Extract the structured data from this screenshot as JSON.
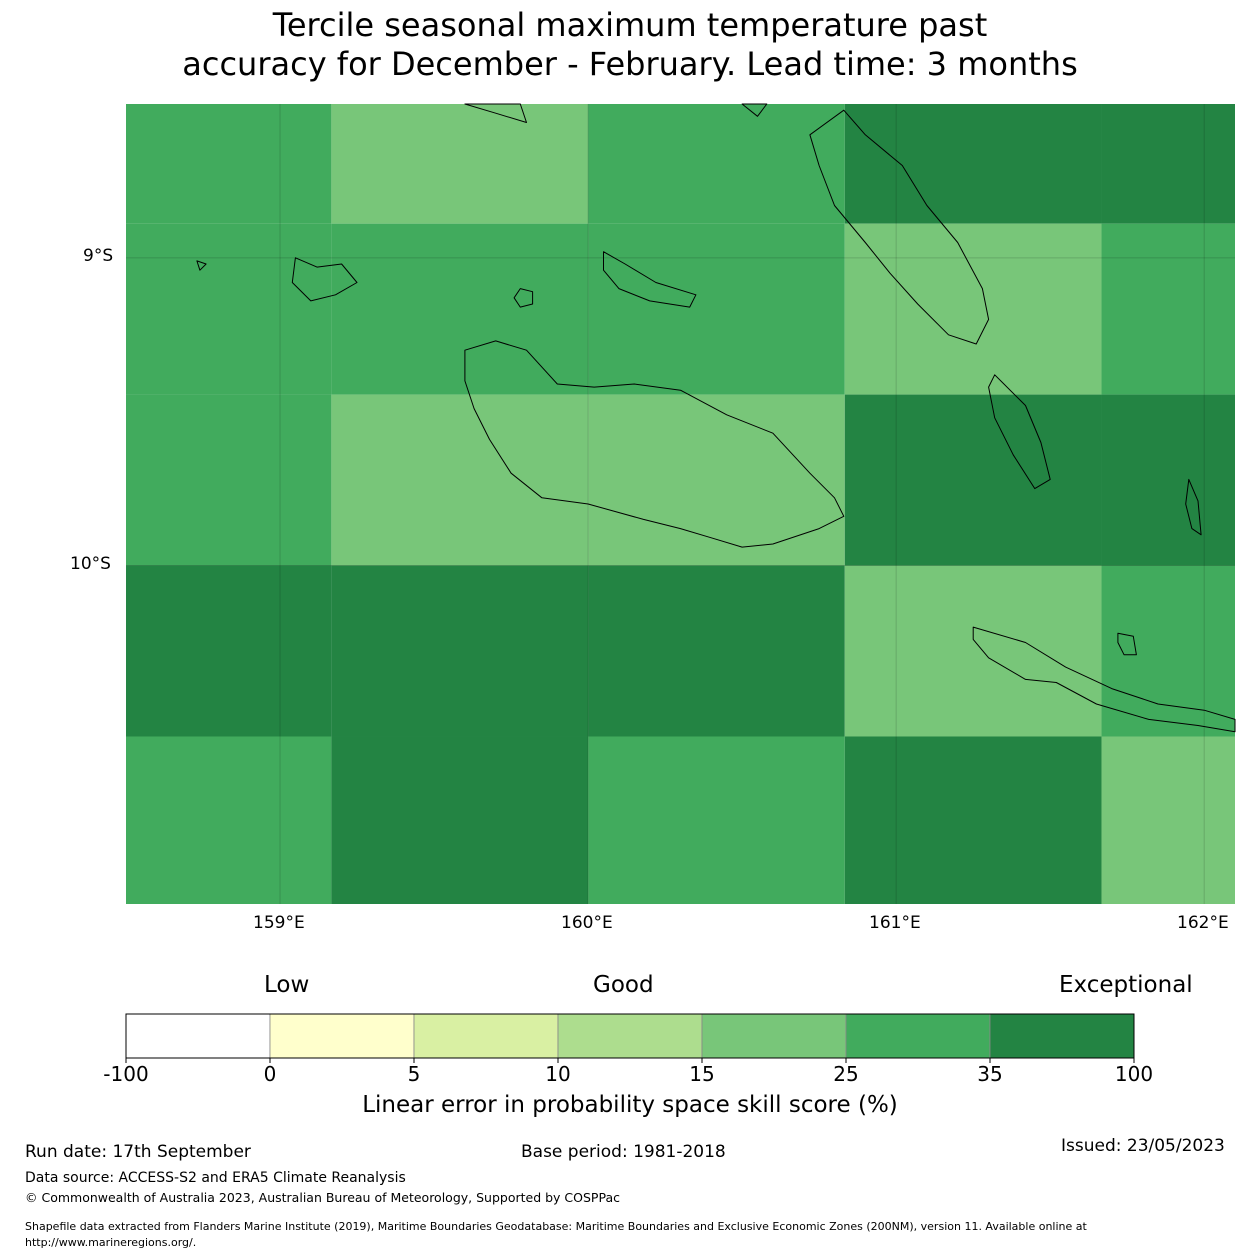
{
  "title": {
    "line1": "Tercile seasonal maximum temperature past",
    "line2": "accuracy for December - February. Lead time: 3 months"
  },
  "map": {
    "lon_range": [
      158.5,
      162.1
    ],
    "lat_range": [
      -11.1,
      -8.5
    ],
    "lon_ticks": [
      {
        "value": 159,
        "label": "159°E"
      },
      {
        "value": 160,
        "label": "160°E"
      },
      {
        "value": 161,
        "label": "161°E"
      },
      {
        "value": 162,
        "label": "162°E"
      }
    ],
    "lat_ticks": [
      {
        "value": -9,
        "label": "9°S"
      },
      {
        "value": -10,
        "label": "10°S"
      }
    ],
    "grid_lon_edges": [
      158.5,
      159.1667,
      160.0,
      160.8333,
      161.6667,
      162.1
    ],
    "grid_lat_edges": [
      -8.5,
      -8.8889,
      -9.4444,
      -10.0,
      -10.5556,
      -11.1
    ],
    "skill_class_grid": [
      [
        5,
        4,
        5,
        6,
        6
      ],
      [
        5,
        5,
        5,
        4,
        5
      ],
      [
        5,
        4,
        4,
        6,
        6
      ],
      [
        6,
        6,
        6,
        4,
        5
      ],
      [
        5,
        6,
        5,
        6,
        4
      ]
    ],
    "islands": [
      {
        "name": "Guadalcanal",
        "coords": [
          [
            159.6,
            -9.3
          ],
          [
            159.7,
            -9.27
          ],
          [
            159.8,
            -9.3
          ],
          [
            159.9,
            -9.41
          ],
          [
            160.02,
            -9.42
          ],
          [
            160.15,
            -9.41
          ],
          [
            160.3,
            -9.43
          ],
          [
            160.45,
            -9.51
          ],
          [
            160.6,
            -9.57
          ],
          [
            160.72,
            -9.7
          ],
          [
            160.8,
            -9.78
          ],
          [
            160.83,
            -9.84
          ],
          [
            160.75,
            -9.88
          ],
          [
            160.6,
            -9.93
          ],
          [
            160.5,
            -9.94
          ],
          [
            160.4,
            -9.91
          ],
          [
            160.3,
            -9.88
          ],
          [
            160.18,
            -9.85
          ],
          [
            160.0,
            -9.8
          ],
          [
            159.85,
            -9.78
          ],
          [
            159.75,
            -9.7
          ],
          [
            159.68,
            -9.59
          ],
          [
            159.63,
            -9.49
          ],
          [
            159.6,
            -9.4
          ]
        ]
      },
      {
        "name": "Malaita North",
        "coords": [
          [
            160.83,
            -8.52
          ],
          [
            160.9,
            -8.6
          ],
          [
            161.02,
            -8.7
          ],
          [
            161.1,
            -8.83
          ],
          [
            161.2,
            -8.95
          ],
          [
            161.28,
            -9.1
          ],
          [
            161.3,
            -9.2
          ],
          [
            161.26,
            -9.28
          ],
          [
            161.17,
            -9.25
          ],
          [
            161.07,
            -9.15
          ],
          [
            160.98,
            -9.05
          ],
          [
            160.9,
            -8.95
          ],
          [
            160.8,
            -8.83
          ],
          [
            160.75,
            -8.7
          ],
          [
            160.72,
            -8.6
          ]
        ]
      },
      {
        "name": "Malaita South",
        "coords": [
          [
            161.32,
            -9.38
          ],
          [
            161.42,
            -9.48
          ],
          [
            161.47,
            -9.6
          ],
          [
            161.5,
            -9.72
          ],
          [
            161.45,
            -9.75
          ],
          [
            161.38,
            -9.64
          ],
          [
            161.32,
            -9.52
          ],
          [
            161.3,
            -9.42
          ]
        ]
      },
      {
        "name": "Makira",
        "coords": [
          [
            161.25,
            -10.2
          ],
          [
            161.42,
            -10.25
          ],
          [
            161.55,
            -10.33
          ],
          [
            161.7,
            -10.4
          ],
          [
            161.85,
            -10.45
          ],
          [
            162.0,
            -10.47
          ],
          [
            162.1,
            -10.5
          ],
          [
            162.1,
            -10.54
          ],
          [
            161.98,
            -10.52
          ],
          [
            161.82,
            -10.5
          ],
          [
            161.65,
            -10.45
          ],
          [
            161.52,
            -10.38
          ],
          [
            161.42,
            -10.37
          ],
          [
            161.3,
            -10.3
          ],
          [
            161.25,
            -10.24
          ]
        ]
      },
      {
        "name": "Ulawa",
        "coords": [
          [
            161.95,
            -9.72
          ],
          [
            161.98,
            -9.79
          ],
          [
            161.99,
            -9.9
          ],
          [
            161.96,
            -9.88
          ],
          [
            161.94,
            -9.8
          ]
        ]
      },
      {
        "name": "Russell Islands",
        "coords": [
          [
            159.05,
            -9.0
          ],
          [
            159.12,
            -9.03
          ],
          [
            159.2,
            -9.02
          ],
          [
            159.25,
            -9.08
          ],
          [
            159.18,
            -9.12
          ],
          [
            159.1,
            -9.14
          ],
          [
            159.04,
            -9.08
          ]
        ]
      },
      {
        "name": "Florida Islands",
        "coords": [
          [
            160.05,
            -8.98
          ],
          [
            160.12,
            -9.02
          ],
          [
            160.22,
            -9.08
          ],
          [
            160.35,
            -9.12
          ],
          [
            160.33,
            -9.16
          ],
          [
            160.2,
            -9.14
          ],
          [
            160.1,
            -9.1
          ],
          [
            160.05,
            -9.04
          ]
        ]
      },
      {
        "name": "Savo",
        "coords": [
          [
            159.78,
            -9.1
          ],
          [
            159.82,
            -9.11
          ],
          [
            159.82,
            -9.15
          ],
          [
            159.78,
            -9.16
          ],
          [
            159.76,
            -9.13
          ]
        ]
      },
      {
        "name": "Santa Isabel tip",
        "coords": [
          [
            159.6,
            -8.5
          ],
          [
            159.7,
            -8.53
          ],
          [
            159.8,
            -8.56
          ],
          [
            159.78,
            -8.5
          ]
        ]
      },
      {
        "name": "Sikaiana",
        "coords": [
          [
            160.5,
            -8.5
          ],
          [
            160.55,
            -8.54
          ],
          [
            160.58,
            -8.5
          ]
        ]
      },
      {
        "name": "Kayu",
        "coords": [
          [
            158.73,
            -9.01
          ],
          [
            158.76,
            -9.02
          ],
          [
            158.74,
            -9.04
          ]
        ]
      },
      {
        "name": "Ugi",
        "coords": [
          [
            161.72,
            -10.22
          ],
          [
            161.77,
            -10.23
          ],
          [
            161.78,
            -10.29
          ],
          [
            161.74,
            -10.29
          ],
          [
            161.72,
            -10.25
          ]
        ]
      }
    ]
  },
  "colorbar": {
    "categories": {
      "low": "Low",
      "good": "Good",
      "exceptional": "Exceptional"
    },
    "classes": [
      {
        "label": "-100",
        "color": "#ffffff"
      },
      {
        "label": "0",
        "color": "#ffffcc"
      },
      {
        "label": "5",
        "color": "#d9f0a3"
      },
      {
        "label": "10",
        "color": "#addd8e"
      },
      {
        "label": "15",
        "color": "#78c679"
      },
      {
        "label": "25",
        "color": "#41ab5d"
      },
      {
        "label": "35",
        "color": "#238443"
      }
    ],
    "end_label": "100",
    "title": "Linear error in probability space skill score (%)"
  },
  "footer": {
    "run_date": "Run date: 17th September",
    "base_period": "Base period: 1981-2018",
    "issued": "Issued: 23/05/2023",
    "data_source": "Data source: ACCESS-S2 and ERA5 Climate Reanalysis",
    "copyright": "© Commonwealth of Australia 2023, Australian Bureau of Meteorology, Supported by COSPPac",
    "shapefile_line1": "Shapefile data extracted from Flanders Marine Institute (2019), Maritime Boundaries Geodatabase: Maritime Boundaries and Exclusive Economic Zones (200NM), version 11. Available online at",
    "shapefile_line2": "http://www.marineregions.org/."
  }
}
